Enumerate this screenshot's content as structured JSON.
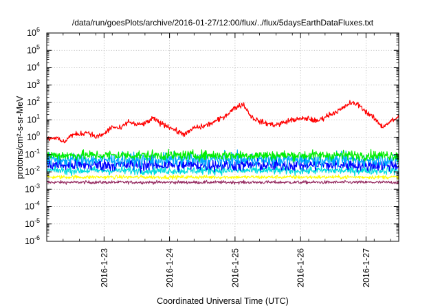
{
  "chart_data": {
    "type": "line",
    "title": "/data/run/goesPlots/archive/2016-01-27/12:00/flux/../flux/5daysEarthDataFluxes.txt",
    "xlabel": "Coordinated Universal Time (UTC)",
    "ylabel": "protons/cm²-s-sr-MeV",
    "y_scale": "log",
    "grid": true,
    "legend": "none",
    "x_range_days": [
      "2016-01-22T03:00",
      "2016-01-27T12:00"
    ],
    "ylim": [
      1e-06,
      1000000.0
    ],
    "x_tick_labels": [
      "2016-1-23",
      "2016-1-24",
      "2016-1-25",
      "2016-1-26",
      "2016-1-27"
    ],
    "y_tick_labels": [
      {
        "base": "10",
        "exp": "-6"
      },
      {
        "base": "10",
        "exp": "-5"
      },
      {
        "base": "10",
        "exp": "-4"
      },
      {
        "base": "10",
        "exp": "-3"
      },
      {
        "base": "10",
        "exp": "-2"
      },
      {
        "base": "10",
        "exp": "-1"
      },
      {
        "base": "10",
        "exp": "0"
      },
      {
        "base": "10",
        "exp": "1"
      },
      {
        "base": "10",
        "exp": "2"
      },
      {
        "base": "10",
        "exp": "3"
      },
      {
        "base": "10",
        "exp": "4"
      },
      {
        "base": "10",
        "exp": "5"
      },
      {
        "base": "10",
        "exp": "6"
      }
    ],
    "series": [
      {
        "color": "#ff0000",
        "noise": 0.12,
        "x": [
          "2016-01-22T03:00",
          "2016-01-22T06:00",
          "2016-01-22T09:00",
          "2016-01-22T12:00",
          "2016-01-22T15:00",
          "2016-01-22T18:00",
          "2016-01-22T21:00",
          "2016-01-23T00:00",
          "2016-01-23T03:00",
          "2016-01-23T06:00",
          "2016-01-23T09:00",
          "2016-01-23T12:00",
          "2016-01-23T15:00",
          "2016-01-23T18:00",
          "2016-01-23T21:00",
          "2016-01-24T00:00",
          "2016-01-24T03:00",
          "2016-01-24T06:00",
          "2016-01-24T09:00",
          "2016-01-24T12:00",
          "2016-01-24T15:00",
          "2016-01-24T18:00",
          "2016-01-24T21:00",
          "2016-01-25T00:00",
          "2016-01-25T03:00",
          "2016-01-25T06:00",
          "2016-01-25T09:00",
          "2016-01-25T12:00",
          "2016-01-25T15:00",
          "2016-01-25T18:00",
          "2016-01-25T21:00",
          "2016-01-26T00:00",
          "2016-01-26T03:00",
          "2016-01-26T06:00",
          "2016-01-26T09:00",
          "2016-01-26T12:00",
          "2016-01-26T15:00",
          "2016-01-26T18:00",
          "2016-01-26T21:00",
          "2016-01-27T00:00",
          "2016-01-27T03:00",
          "2016-01-27T06:00",
          "2016-01-27T09:00",
          "2016-01-27T12:00"
        ],
        "values": [
          0.8,
          1.0,
          0.5,
          1.3,
          1.5,
          2.0,
          1.0,
          1.5,
          4.0,
          3.0,
          8.0,
          5.0,
          6.0,
          12.0,
          6.0,
          4.0,
          2.0,
          1.5,
          3.5,
          4.0,
          6.0,
          10.0,
          20.0,
          50.0,
          80.0,
          15.0,
          8.0,
          6.0,
          5.0,
          7.0,
          10.0,
          11.0,
          12.0,
          8.0,
          15.0,
          25.0,
          40.0,
          90.0,
          80.0,
          30.0,
          12.0,
          4.0,
          8.0,
          14.0
        ]
      },
      {
        "color": "#00ee00",
        "level": 0.09,
        "noise": 0.22
      },
      {
        "color": "#00aaff",
        "level": 0.05,
        "noise": 0.3
      },
      {
        "color": "#0000ff",
        "level": 0.025,
        "noise": 0.28
      },
      {
        "color": "#00dddd",
        "level": 0.012,
        "noise": 0.18
      },
      {
        "color": "#ffff00",
        "level": 0.005,
        "noise": 0.08
      },
      {
        "color": "#993366",
        "level": 0.0025,
        "noise": 0.07
      }
    ]
  }
}
